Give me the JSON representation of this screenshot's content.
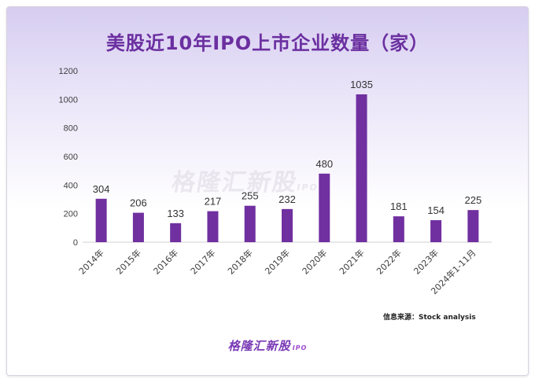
{
  "title": "美股近10年IPO上市企业数量（家）",
  "watermark": {
    "text": "格隆汇新股",
    "tag": "IPO"
  },
  "source": "信息来源：Stock analysis",
  "footer": {
    "logo_text": "格隆汇新股",
    "logo_tag": "IPO"
  },
  "colors": {
    "bar": "#7030a0",
    "title": "#6b2fa0",
    "axis": "#d0d0d0",
    "label": "#404040"
  },
  "chart_data": {
    "type": "bar",
    "title": "美股近10年IPO上市企业数量（家）",
    "categories": [
      "2014年",
      "2015年",
      "2016年",
      "2017年",
      "2018年",
      "2019年",
      "2020年",
      "2021年",
      "2022年",
      "2023年",
      "2024年1-11月"
    ],
    "values": [
      304,
      206,
      133,
      217,
      255,
      232,
      480,
      1035,
      181,
      154,
      225
    ],
    "ylim": [
      0,
      1200
    ],
    "yticks": [
      0,
      200,
      400,
      600,
      800,
      1000,
      1200
    ],
    "grid": false,
    "xlabel": "",
    "ylabel": ""
  }
}
